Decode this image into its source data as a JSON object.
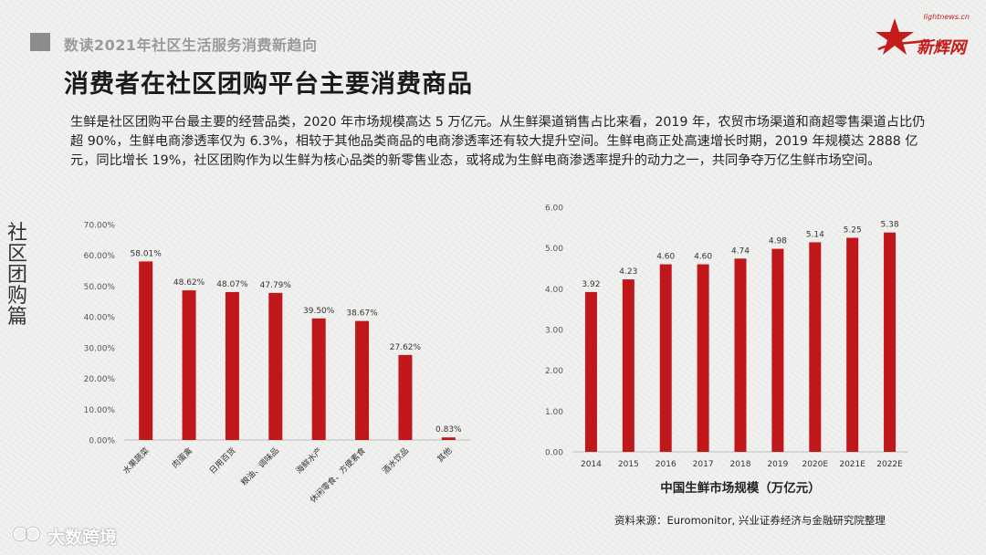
{
  "header": {
    "section_title": "数读2021年社区生活服务消费新趋向",
    "page_title": "消费者在社区团购平台主要消费商品",
    "logo_top": "lightnews.cn",
    "logo_main": "新辉网"
  },
  "intro_text": "生鲜是社区团购平台最主要的经营品类，2020 年市场规模高达 5 万亿元。从生鲜渠道销售占比来看，2019 年，农贸市场渠道和商超零售渠道占比仍超 90%，生鲜电商渗透率仅为 6.3%，相较于其他品类商品的电商渗透率还有较大提升空间。生鲜电商正处高速增长时期，2019 年规模达 2888 亿元，同比增长 19%，社区团购作为以生鲜为核心品类的新零售业态，或将成为生鲜电商渗透率提升的动力之一，共同争夺万亿生鲜市场空间。",
  "side_label": "社区团购篇",
  "source_text": "资料来源：Euromonitor, 兴业证券经济与金融研究院整理",
  "watermark": "大数跨境",
  "colors": {
    "bar": "#c0171a",
    "accent": "#c41b1b"
  },
  "chart_data": [
    {
      "type": "bar",
      "categories": [
        "水果蔬菜",
        "肉蛋禽",
        "日用百货",
        "粮油、调味品",
        "海鲜水产",
        "休闲零食、方便素食",
        "酒水饮品",
        "其他"
      ],
      "values": [
        58.01,
        48.62,
        48.07,
        47.79,
        39.5,
        38.67,
        27.62,
        0.83
      ],
      "value_labels": [
        "58.01%",
        "48.62%",
        "48.07%",
        "47.79%",
        "39.50%",
        "38.67%",
        "27.62%",
        "0.83%"
      ],
      "y_ticks": [
        "0.00%",
        "10.00%",
        "20.00%",
        "30.00%",
        "40.00%",
        "50.00%",
        "60.00%",
        "70.00%"
      ],
      "ylim": [
        0,
        70
      ],
      "title": "",
      "xlabel": "",
      "ylabel": "",
      "grid": false
    },
    {
      "type": "bar",
      "categories": [
        "2014",
        "2015",
        "2016",
        "2017",
        "2018",
        "2019",
        "2020E",
        "2021E",
        "2022E"
      ],
      "values": [
        3.92,
        4.23,
        4.6,
        4.6,
        4.74,
        4.98,
        5.14,
        5.25,
        5.38
      ],
      "value_labels": [
        "3.92",
        "4.23",
        "4.60",
        "4.60",
        "4.74",
        "4.98",
        "5.14",
        "5.25",
        "5.38"
      ],
      "y_ticks": [
        "0.00",
        "1.00",
        "2.00",
        "3.00",
        "4.00",
        "5.00",
        "6.00"
      ],
      "ylim": [
        0,
        6
      ],
      "title": "中国生鲜市场规模（万亿元）",
      "xlabel": "",
      "ylabel": "",
      "grid": false
    }
  ]
}
